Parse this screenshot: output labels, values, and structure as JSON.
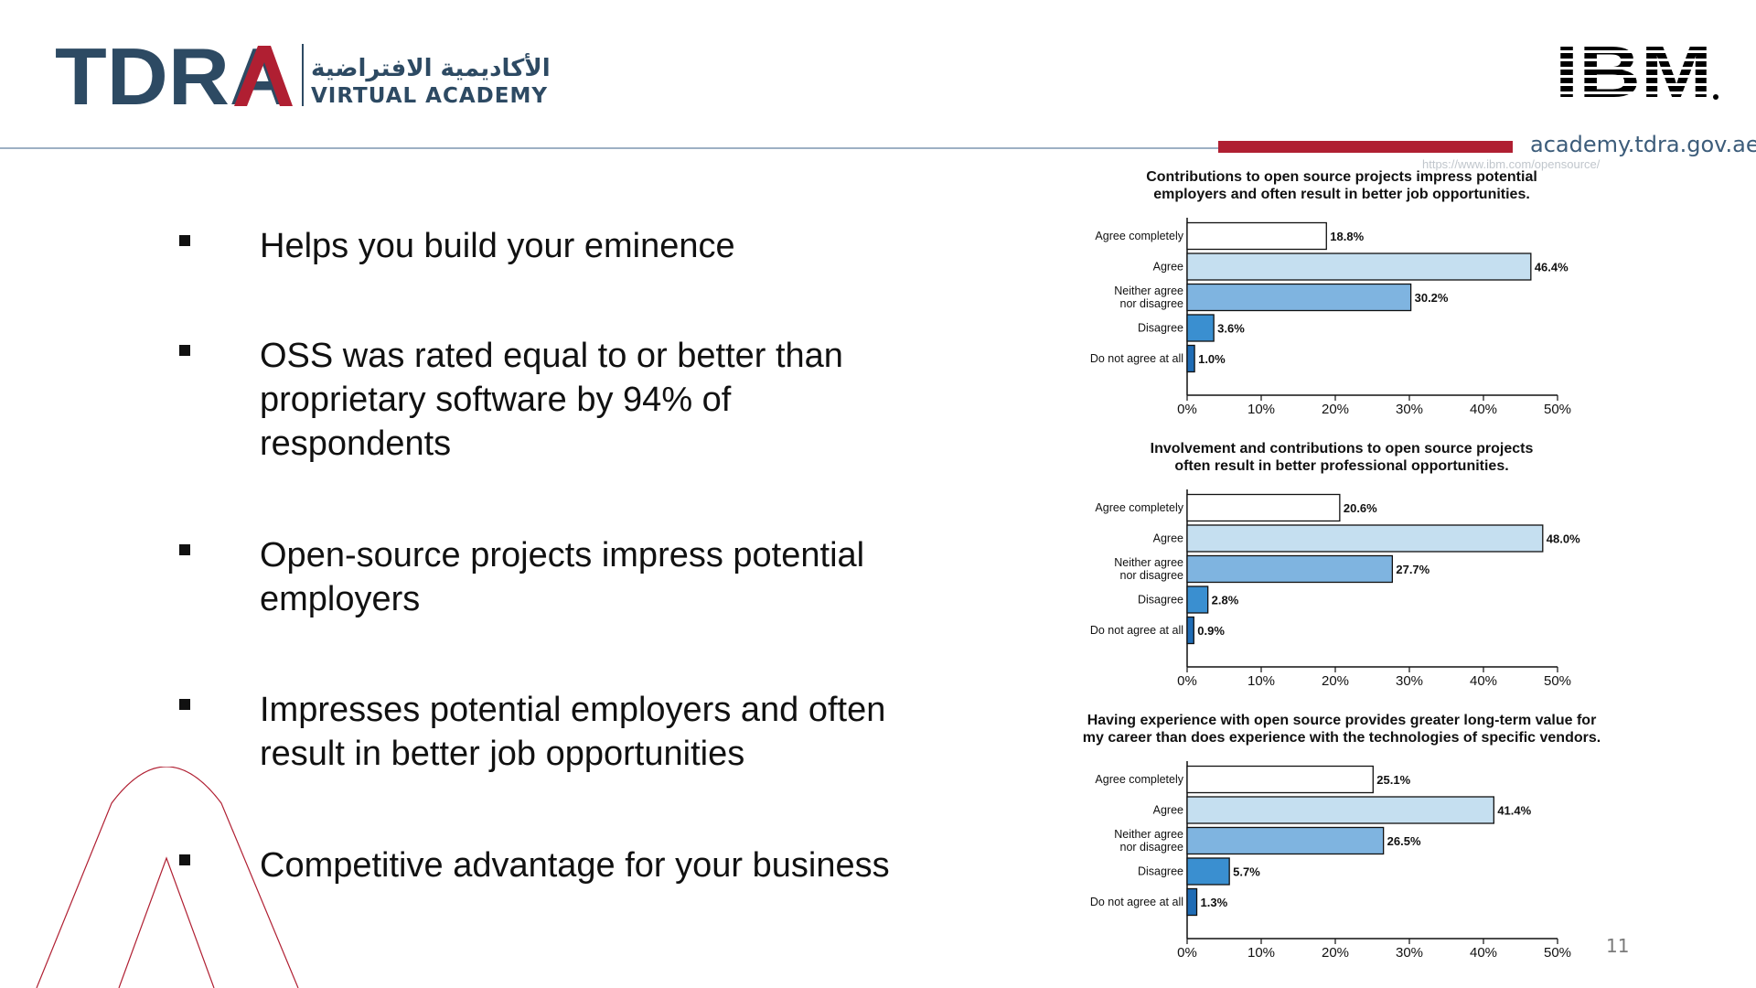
{
  "header": {
    "logo_text": "TDRA",
    "academy_arabic": "الأكاديمية الافتراضية",
    "academy_english": "VIRTUAL ACADEMY",
    "partner_logo": "IBM",
    "site_url": "academy.tdra.gov.ae",
    "source_url": "https://www.ibm.com/opensource/"
  },
  "bullets": [
    "Helps you build your eminence",
    "OSS was rated equal to or better than proprietary software by 94% of respondents",
    "Open-source projects impress potential employers",
    "Impresses potential employers and often result in better job opportunities",
    "Competitive advantage for your business"
  ],
  "page_number": "11",
  "colors": {
    "brand_navy": "#2d4a63",
    "brand_red": "#b01f32",
    "bar_agree_completely": "#ffffff",
    "bar_agree": "#c5dff0",
    "bar_neither": "#7fb4e0",
    "bar_disagree": "#3a8fd0",
    "bar_not_at_all": "#1f6cb5"
  },
  "chart_data": [
    {
      "type": "bar",
      "orientation": "horizontal",
      "title": "Contributions to open source projects impress potential employers and often result in better job opportunities.",
      "title_lines": [
        "Contributions to open source projects impress potential",
        "employers and often result in better job opportunities."
      ],
      "categories": [
        "Agree completely",
        "Agree",
        "Neither agree nor disagree",
        "Disagree",
        "Do not agree at all"
      ],
      "category_lines": [
        [
          "Agree completely"
        ],
        [
          "Agree"
        ],
        [
          "Neither agree",
          "nor disagree"
        ],
        [
          "Disagree"
        ],
        [
          "Do not agree at all"
        ]
      ],
      "values": [
        18.8,
        46.4,
        30.2,
        3.6,
        1.0
      ],
      "value_labels": [
        "18.8%",
        "46.4%",
        "30.2%",
        "3.6%",
        "1.0%"
      ],
      "xlim": [
        0,
        50
      ],
      "xticks": [
        "0%",
        "10%",
        "20%",
        "30%",
        "40%",
        "50%"
      ],
      "grid": false
    },
    {
      "type": "bar",
      "orientation": "horizontal",
      "title": "Involvement and contributions to open source projects often result in better professional opportunities.",
      "title_lines": [
        "Involvement and contributions to open source projects",
        "often result in better professional opportunities."
      ],
      "categories": [
        "Agree completely",
        "Agree",
        "Neither agree nor disagree",
        "Disagree",
        "Do not agree at all"
      ],
      "category_lines": [
        [
          "Agree completely"
        ],
        [
          "Agree"
        ],
        [
          "Neither agree",
          "nor disagree"
        ],
        [
          "Disagree"
        ],
        [
          "Do not agree at all"
        ]
      ],
      "values": [
        20.6,
        48.0,
        27.7,
        2.8,
        0.9
      ],
      "value_labels": [
        "20.6%",
        "48.0%",
        "27.7%",
        "2.8%",
        "0.9%"
      ],
      "xlim": [
        0,
        50
      ],
      "xticks": [
        "0%",
        "10%",
        "20%",
        "30%",
        "40%",
        "50%"
      ],
      "grid": false
    },
    {
      "type": "bar",
      "orientation": "horizontal",
      "title": "Having experience with open source provides greater long-term value for my career than does experience with the technologies of specific vendors.",
      "title_lines": [
        "Having experience with open source provides greater long-term value for",
        "my career than does experience with the technologies of specific vendors."
      ],
      "categories": [
        "Agree completely",
        "Agree",
        "Neither agree nor disagree",
        "Disagree",
        "Do not agree at all"
      ],
      "category_lines": [
        [
          "Agree completely"
        ],
        [
          "Agree"
        ],
        [
          "Neither agree",
          "nor disagree"
        ],
        [
          "Disagree"
        ],
        [
          "Do not agree at all"
        ]
      ],
      "values": [
        25.1,
        41.4,
        26.5,
        5.7,
        1.3
      ],
      "value_labels": [
        "25.1%",
        "41.4%",
        "26.5%",
        "5.7%",
        "1.3%"
      ],
      "xlim": [
        0,
        50
      ],
      "xticks": [
        "0%",
        "10%",
        "20%",
        "30%",
        "40%",
        "50%"
      ],
      "grid": false
    }
  ]
}
